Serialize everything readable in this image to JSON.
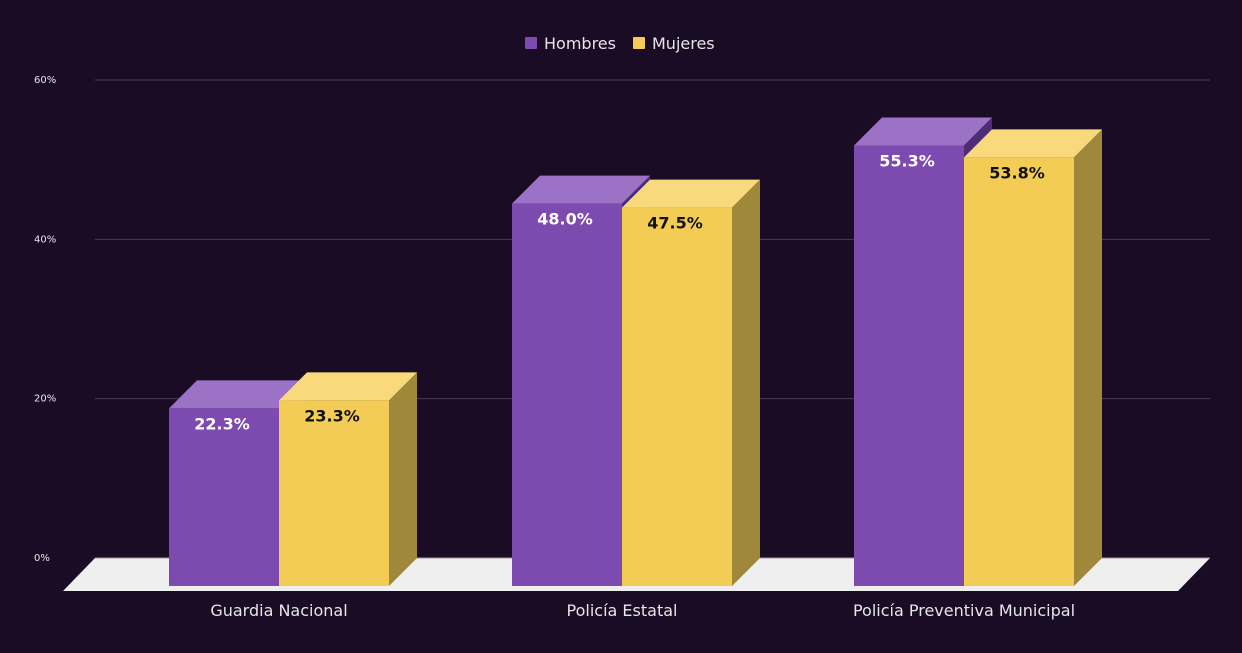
{
  "chart_data": {
    "type": "bar",
    "style": "3d-clustered",
    "title": "",
    "xlabel": "",
    "ylabel": "",
    "ylim": [
      0,
      60
    ],
    "y_ticks": [
      0,
      20,
      40,
      60
    ],
    "y_tick_labels": [
      "0%",
      "20%",
      "40%",
      "60%"
    ],
    "grid": true,
    "legend_position": "top-center",
    "categories": [
      "Guardia Nacional",
      "Policía Estatal",
      "Policía Preventiva Municipal"
    ],
    "series": [
      {
        "name": "Hombres",
        "color": "#7d4bb0",
        "values": [
          22.3,
          48.0,
          55.3
        ],
        "labels": [
          "22.3%",
          "48.0%",
          "55.3%"
        ]
      },
      {
        "name": "Mujeres",
        "color": "#f3cc55",
        "values": [
          23.3,
          47.5,
          53.8
        ],
        "labels": [
          "23.3%",
          "47.5%",
          "53.8%"
        ]
      }
    ]
  },
  "colors": {
    "background": "#1b0c26",
    "grid": "#4a3d55",
    "floor": "#efefef",
    "axis_text": "#e6e6e6",
    "hombres_top": "#9b72c6",
    "hombres_side": "#4e2c76",
    "mujeres_top": "#f8da7c",
    "mujeres_side": "#a0883a",
    "hombres_label": "#ffffff",
    "mujeres_label": "#111111"
  }
}
